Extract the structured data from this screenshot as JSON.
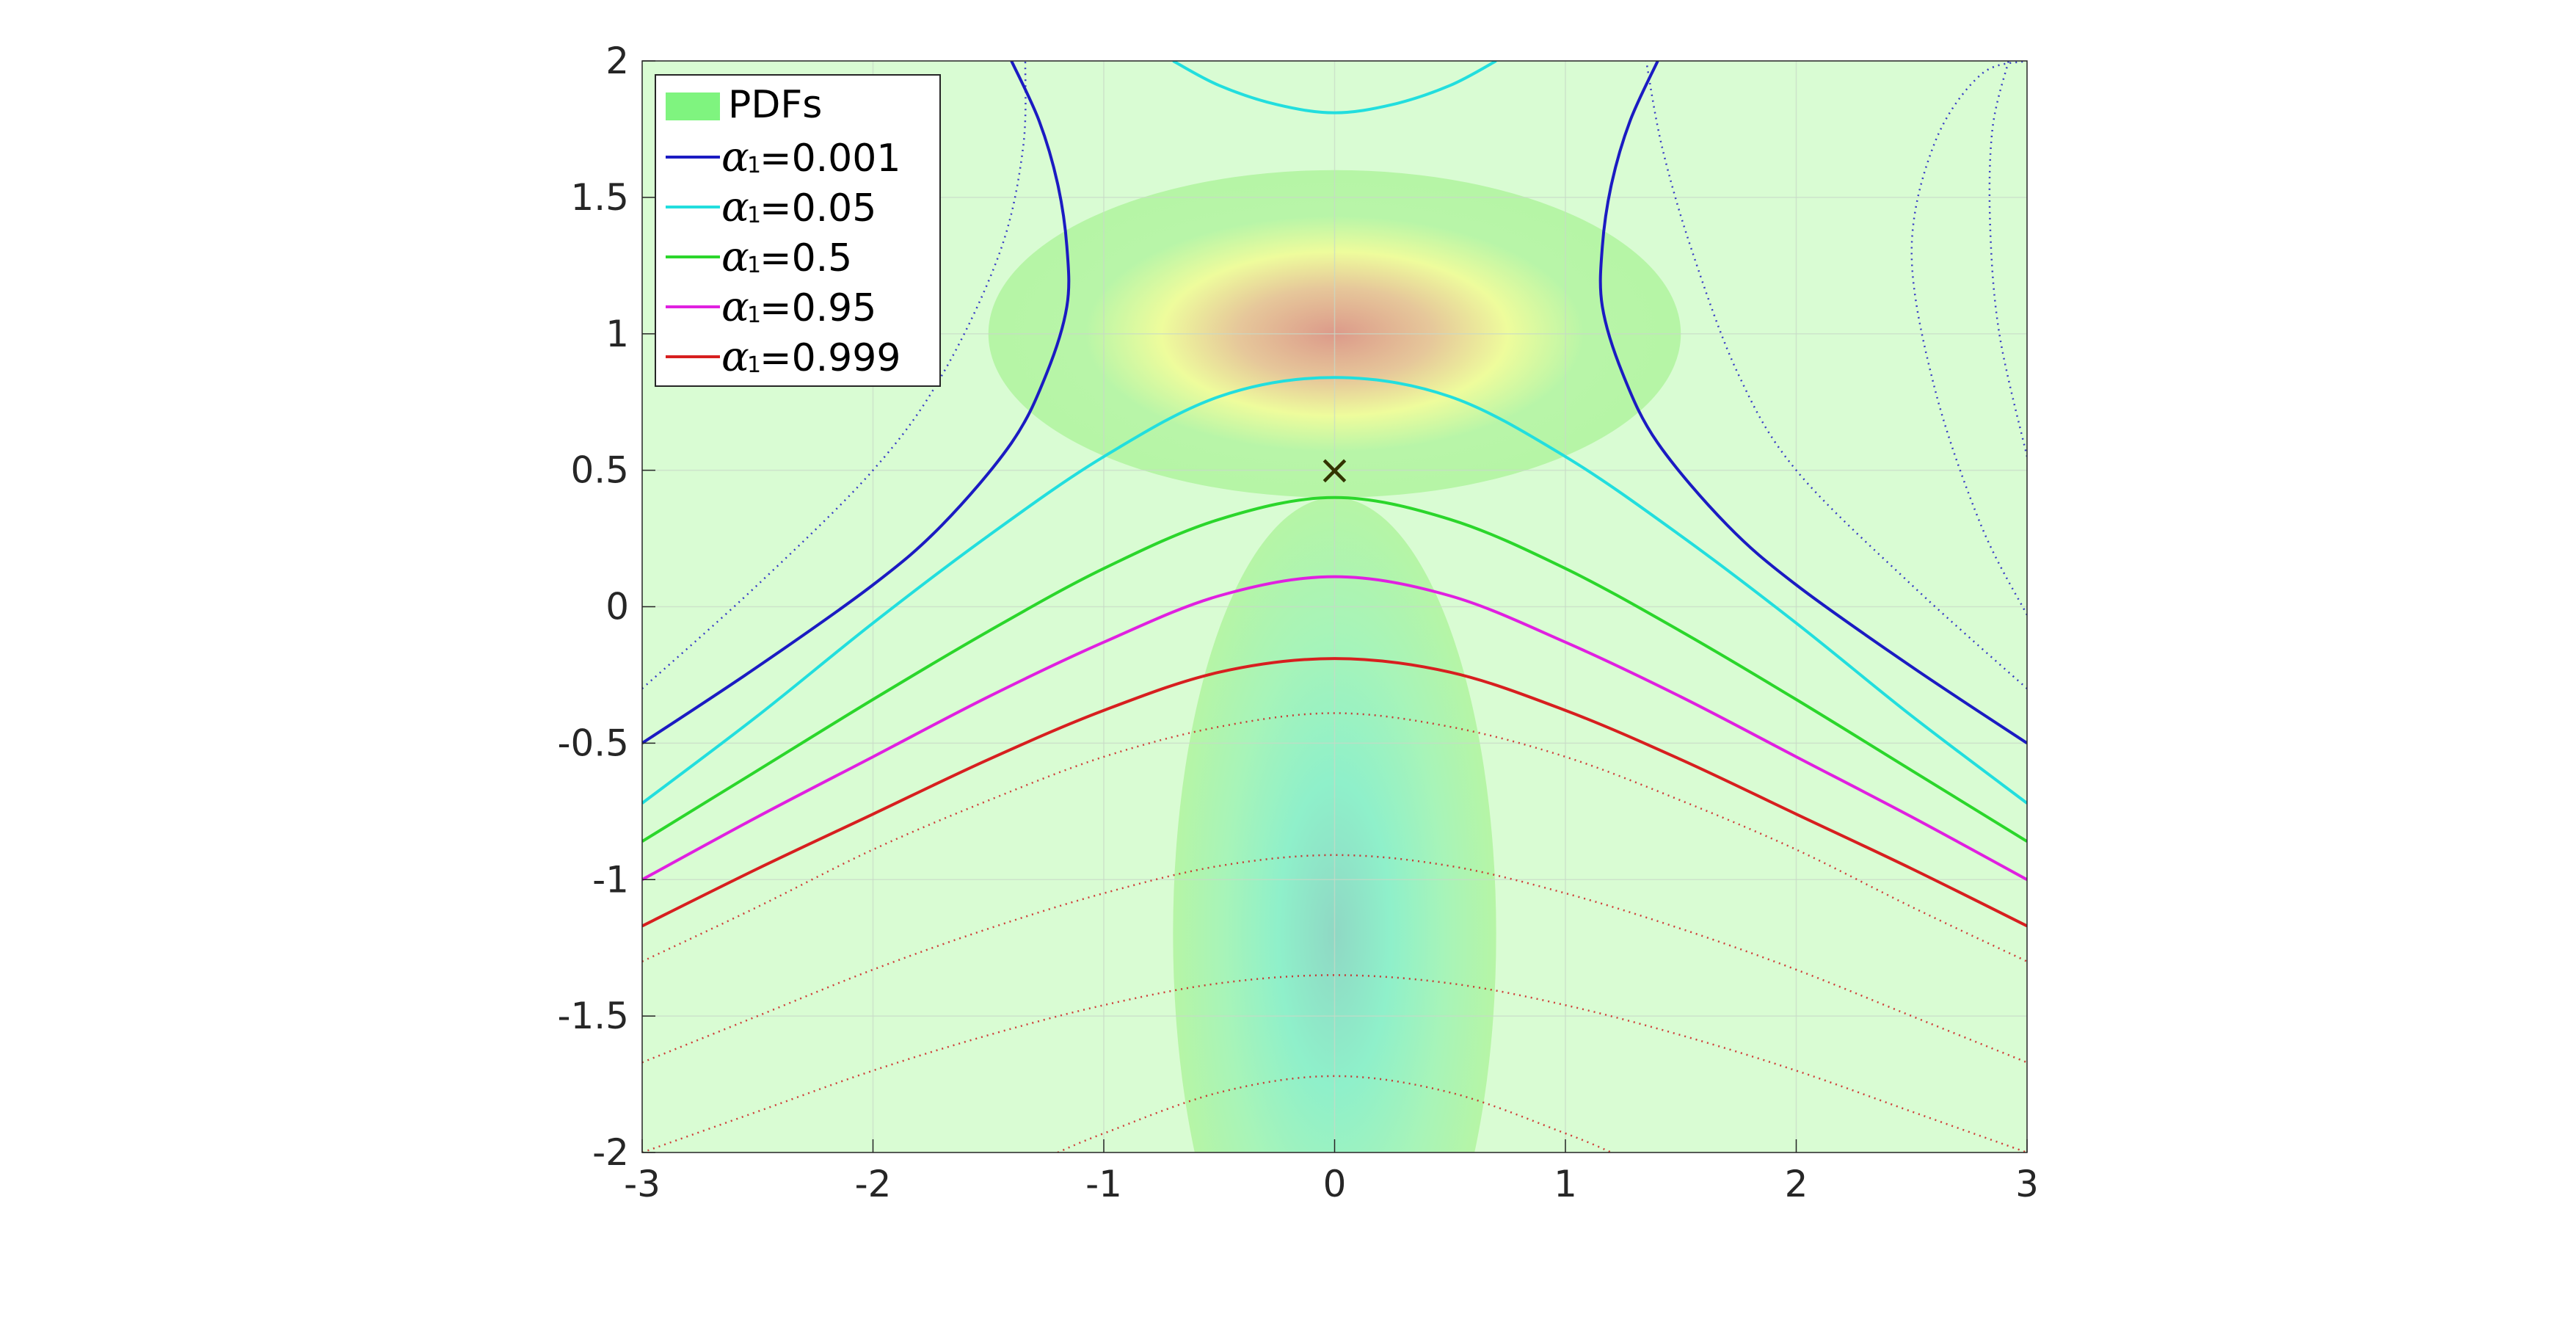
{
  "chart_data": {
    "type": "line",
    "title": "",
    "xlabel": "",
    "ylabel": "",
    "xlim": [
      -3,
      3
    ],
    "ylim": [
      -2,
      2
    ],
    "xticks": [
      "-3",
      "-2",
      "-1",
      "0",
      "1",
      "2",
      "3"
    ],
    "yticks": [
      "-2",
      "-1.5",
      "-1",
      "-0.5",
      "0",
      "0.5",
      "1",
      "1.5",
      "2"
    ],
    "grid": true,
    "legend_position": "top-left",
    "pdf_label": "PDFs",
    "pdf_color": "#7ff47f",
    "background_color": "#d9fcd3",
    "pdf_modes": [
      {
        "center": [
          0,
          1.0
        ],
        "radius": [
          1.5,
          0.6
        ],
        "peak_color": "#dc9a8a"
      },
      {
        "center": [
          0,
          -1.2
        ],
        "radius": [
          0.7,
          1.6
        ],
        "peak_color": "#8fd8c4"
      }
    ],
    "marker": {
      "symbol": "×",
      "x": 0,
      "y": 0.5,
      "color": "#333300"
    },
    "series": [
      {
        "name": "=0.001",
        "symbol": "α",
        "subscript": "1",
        "color": "#1b1bc2",
        "branches": [
          {
            "x": [
              -3,
              -2.5,
              -2,
              -1.7,
              -1.4,
              -1.25,
              -1.16,
              -1.16,
              -1.2,
              -1.28,
              -1.4
            ],
            "y": [
              -0.5,
              -0.22,
              0.08,
              0.3,
              0.6,
              0.85,
              1.1,
              1.32,
              1.55,
              1.78,
              2.0
            ]
          },
          {
            "x": [
              3,
              2.5,
              2,
              1.7,
              1.4,
              1.25,
              1.16,
              1.16,
              1.2,
              1.28,
              1.4
            ],
            "y": [
              -0.5,
              -0.22,
              0.08,
              0.3,
              0.6,
              0.85,
              1.1,
              1.32,
              1.55,
              1.78,
              2.0
            ]
          }
        ]
      },
      {
        "name": "=0.05",
        "symbol": "α",
        "subscript": "1",
        "color": "#22dede",
        "branches": [
          {
            "x": [
              -3,
              -2.5,
              -2,
              -1.5,
              -1,
              -0.5,
              0,
              0.5,
              1,
              1.5,
              2,
              2.5,
              3
            ],
            "y": [
              -0.72,
              -0.4,
              -0.06,
              0.26,
              0.55,
              0.77,
              0.84,
              0.77,
              0.55,
              0.26,
              -0.06,
              -0.4,
              -0.72
            ]
          },
          {
            "x": [
              -0.7,
              -0.5,
              -0.25,
              0,
              0.25,
              0.5,
              0.7
            ],
            "y": [
              2.0,
              1.91,
              1.84,
              1.81,
              1.84,
              1.91,
              2.0
            ]
          }
        ]
      },
      {
        "name": "=0.5",
        "symbol": "α",
        "subscript": "1",
        "color": "#2bd62b",
        "branches": [
          {
            "x": [
              -3,
              -2.5,
              -2,
              -1.5,
              -1,
              -0.5,
              0,
              0.5,
              1,
              1.5,
              2,
              2.5,
              3
            ],
            "y": [
              -0.86,
              -0.6,
              -0.34,
              -0.09,
              0.14,
              0.32,
              0.4,
              0.32,
              0.14,
              -0.09,
              -0.34,
              -0.6,
              -0.86
            ]
          }
        ]
      },
      {
        "name": "=0.95",
        "symbol": "α",
        "subscript": "1",
        "color": "#e020e0",
        "branches": [
          {
            "x": [
              -3,
              -2.5,
              -2,
              -1.5,
              -1,
              -0.5,
              0,
              0.5,
              1,
              1.5,
              2,
              2.5,
              3
            ],
            "y": [
              -1.0,
              -0.77,
              -0.55,
              -0.33,
              -0.13,
              0.04,
              0.11,
              0.04,
              -0.13,
              -0.33,
              -0.55,
              -0.77,
              -1.0
            ]
          }
        ]
      },
      {
        "name": "=0.999",
        "symbol": "α",
        "subscript": "1",
        "color": "#d71f1f",
        "branches": [
          {
            "x": [
              -3,
              -2.5,
              -2,
              -1.5,
              -1,
              -0.5,
              0,
              0.5,
              1,
              1.5,
              2,
              2.5,
              3
            ],
            "y": [
              -1.17,
              -0.96,
              -0.76,
              -0.56,
              -0.38,
              -0.24,
              -0.19,
              -0.24,
              -0.38,
              -0.56,
              -0.76,
              -0.96,
              -1.17
            ]
          }
        ]
      }
    ],
    "dotted_contours": [
      {
        "color": "#1b1bc2",
        "x": [
          -3,
          -2.5,
          -2,
          -1.7,
          -1.45,
          -1.35,
          -1.34
        ],
        "y": [
          -0.3,
          0.08,
          0.5,
          0.85,
          1.3,
          1.68,
          2.0
        ]
      },
      {
        "color": "#1b1bc2",
        "x": [
          3,
          2.5,
          2,
          1.75,
          1.55,
          1.42,
          1.35
        ],
        "y": [
          -0.3,
          0.08,
          0.5,
          0.85,
          1.3,
          1.68,
          2.0
        ]
      },
      {
        "color": "#1b1bc2",
        "x": [
          3,
          2.8,
          2.6,
          2.5,
          2.6,
          2.8,
          3
        ],
        "y": [
          -0.03,
          0.3,
          0.8,
          1.3,
          1.7,
          1.95,
          2.0
        ]
      },
      {
        "color": "#1b1bc2",
        "x": [
          3,
          2.88,
          2.84,
          2.85,
          2.92
        ],
        "y": [
          0.55,
          1.0,
          1.4,
          1.75,
          2.0
        ]
      },
      {
        "color": "#cc1f1f",
        "x": [
          -3,
          -2.5,
          -2,
          -1.5,
          -1,
          -0.5,
          0,
          0.5,
          1,
          1.5,
          2,
          2.5,
          3
        ],
        "y": [
          -1.3,
          -1.1,
          -0.89,
          -0.71,
          -0.55,
          -0.44,
          -0.39,
          -0.44,
          -0.55,
          -0.71,
          -0.89,
          -1.1,
          -1.3
        ]
      },
      {
        "color": "#cc1f1f",
        "x": [
          -3,
          -2.5,
          -2,
          -1.5,
          -1,
          -0.5,
          0,
          0.5,
          1,
          1.5,
          2,
          2.5,
          3
        ],
        "y": [
          -1.67,
          -1.5,
          -1.33,
          -1.18,
          -1.05,
          -0.95,
          -0.91,
          -0.95,
          -1.05,
          -1.18,
          -1.33,
          -1.5,
          -1.67
        ]
      },
      {
        "color": "#cc1f1f",
        "x": [
          -3,
          -2.5,
          -2,
          -1.5,
          -1,
          -0.5,
          0,
          0.5,
          1,
          1.5,
          2,
          2.5,
          3
        ],
        "y": [
          -2.0,
          -1.85,
          -1.7,
          -1.57,
          -1.46,
          -1.38,
          -1.35,
          -1.38,
          -1.46,
          -1.57,
          -1.7,
          -1.85,
          -2.0
        ]
      },
      {
        "color": "#cc1f1f",
        "x": [
          -1.2,
          -1,
          -0.5,
          0,
          0.5,
          1,
          1.2
        ],
        "y": [
          -2.0,
          -1.93,
          -1.78,
          -1.72,
          -1.78,
          -1.93,
          -2.0
        ]
      }
    ]
  }
}
